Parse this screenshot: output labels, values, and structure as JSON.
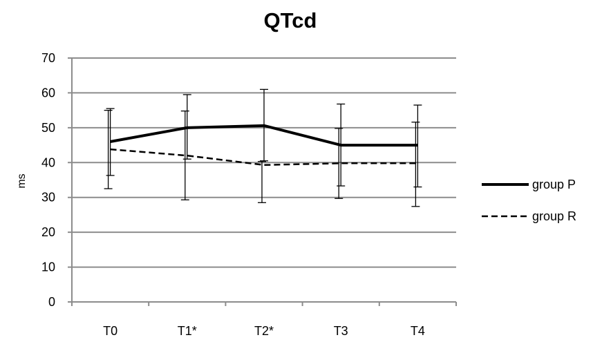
{
  "chart_data": {
    "type": "line",
    "title": "QTcd",
    "xlabel": "",
    "ylabel": "ms",
    "ylim": [
      0,
      70
    ],
    "yticks": [
      0,
      10,
      20,
      30,
      40,
      50,
      60,
      70
    ],
    "categories": [
      "T0",
      "T1*",
      "T2*",
      "T3",
      "T4"
    ],
    "grid": true,
    "legend_position": "right",
    "series": [
      {
        "name": "group P",
        "style": "solid",
        "color": "#000000",
        "values": [
          46,
          50,
          50.6,
          45,
          45
        ],
        "error_upper": [
          55.5,
          59.5,
          61,
          56.8,
          56.5
        ],
        "error_lower": [
          36.3,
          41,
          40.5,
          33.3,
          33
        ]
      },
      {
        "name": "group R",
        "style": "dashed",
        "color": "#000000",
        "values": [
          43.8,
          42,
          39.3,
          39.8,
          39.8
        ],
        "error_upper": [
          55,
          54.8,
          40.3,
          49.8,
          51.6
        ],
        "error_lower": [
          32.5,
          29.3,
          28.5,
          29.7,
          27.4
        ]
      }
    ]
  }
}
